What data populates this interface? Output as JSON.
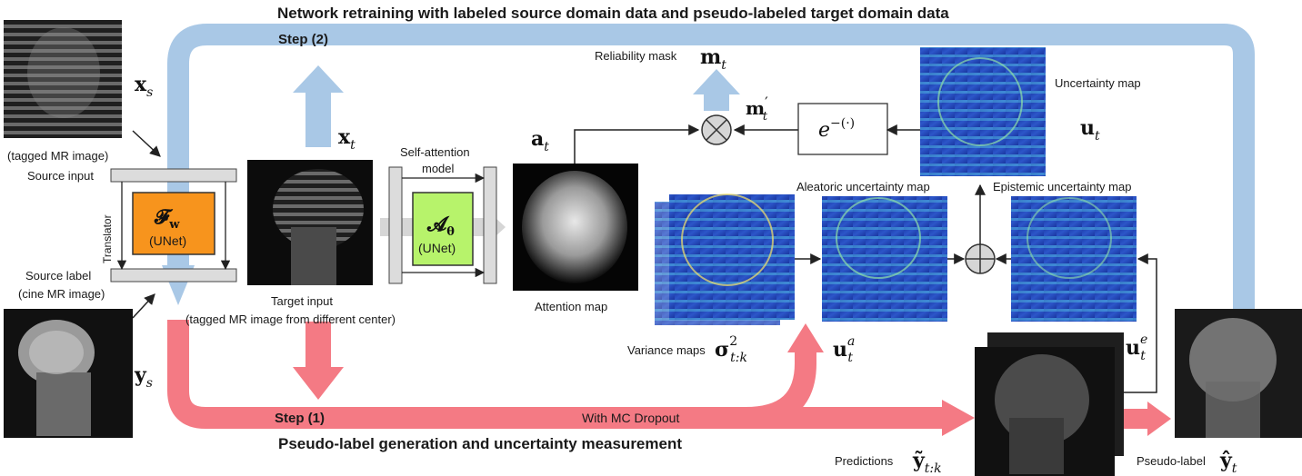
{
  "header": {
    "step2_title": "Network retraining with labeled source domain data and pseudo-labeled target domain data",
    "step2_label": "Step (2)"
  },
  "footer": {
    "step1_title": "Pseudo-label generation and uncertainty measurement",
    "step1_label": "Step (1)",
    "mc_dropout": "With MC Dropout"
  },
  "source": {
    "xs": "x",
    "xs_sub": "s",
    "tagged_caption": "(tagged MR image)",
    "source_input": "Source input",
    "translator": "Translator",
    "source_label": "Source label",
    "cine_caption": "(cine MR image)",
    "ys": "y",
    "ys_sub": "s"
  },
  "translator_model": {
    "symbol": "𝓕",
    "symbol_sub": "w",
    "unet": "(UNet)",
    "color": "#f7941d"
  },
  "target": {
    "xt": "x",
    "xt_sub": "t",
    "target_input": "Target input",
    "target_caption": "(tagged MR image from different center)"
  },
  "attention_model": {
    "label_line1": "Self-attention",
    "label_line2": "model",
    "symbol": "𝓐",
    "symbol_sub": "θ",
    "unet": "(UNet)",
    "color": "#b7f36b"
  },
  "attention": {
    "at": "a",
    "at_sub": "t",
    "caption": "Attention map"
  },
  "reliability": {
    "caption": "Reliability mask",
    "mt": "m",
    "mt_sub": "t",
    "mt_prime": "m",
    "mt_prime_sub": "t",
    "mt_prime_mark": "′",
    "exp_base": "e",
    "exp_power": "−(·)"
  },
  "uncertainty": {
    "caption": "Uncertainty map",
    "ut": "u",
    "ut_sub": "t",
    "aleatoric_caption": "Aleatoric uncertainty map",
    "epistemic_caption": "Epistemic uncertainty map",
    "variance_caption": "Variance maps",
    "sigma": "σ",
    "sigma_sup": "2",
    "sigma_sub": "t:k",
    "uta": "u",
    "uta_sub": "t",
    "uta_sup": "a",
    "ute": "u",
    "ute_sub": "t",
    "ute_sup": "e"
  },
  "predictions": {
    "caption": "Predictions",
    "y": "ỹ",
    "y_sub": "t:k"
  },
  "pseudo_label": {
    "caption": "Pseudo-label",
    "y": "ŷ",
    "y_sub": "t"
  },
  "colors": {
    "step2_blue": "#a9c8e6",
    "step1_red": "#f47a84",
    "heatmap_blue": "#1f3fb8",
    "gray_arrow": "#d6d6d6"
  }
}
